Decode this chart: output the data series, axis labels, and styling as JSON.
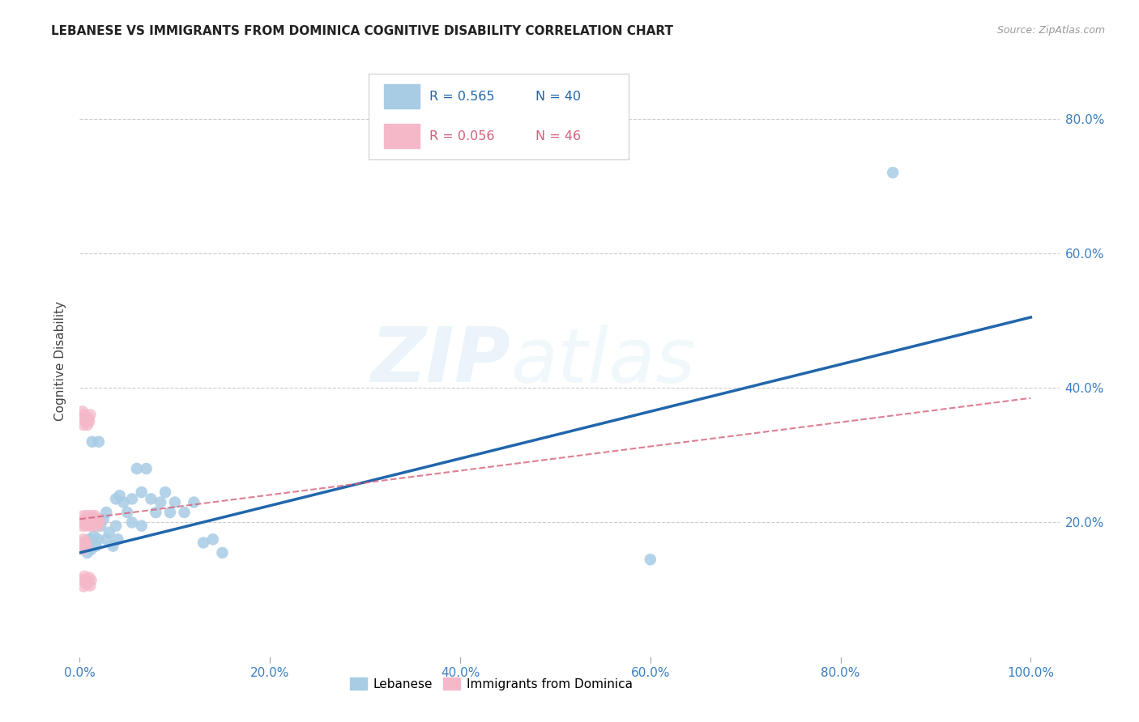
{
  "title": "LEBANESE VS IMMIGRANTS FROM DOMINICA COGNITIVE DISABILITY CORRELATION CHART",
  "source": "Source: ZipAtlas.com",
  "ylabel": "Cognitive Disability",
  "legend_label1": "Lebanese",
  "legend_label2": "Immigrants from Dominica",
  "R1": 0.565,
  "N1": 40,
  "R2": 0.056,
  "N2": 46,
  "color_blue": "#a8cce4",
  "color_pink": "#f4b8c8",
  "line_color_blue": "#2166ac",
  "line_color_pink": "#d4607a",
  "blue_line_x0": 0.0,
  "blue_line_y0": 0.155,
  "blue_line_x1": 1.0,
  "blue_line_y1": 0.505,
  "pink_line_x0": 0.0,
  "pink_line_y0": 0.205,
  "pink_line_x1": 1.0,
  "pink_line_y1": 0.385,
  "xlim": [
    0.0,
    1.03
  ],
  "ylim": [
    0.0,
    0.88
  ],
  "xtick_vals": [
    0.0,
    0.2,
    0.4,
    0.6,
    0.8,
    1.0
  ],
  "xtick_labels": [
    "0.0%",
    "20.0%",
    "40.0%",
    "60.0%",
    "80.0%",
    "100.0%"
  ],
  "ytick_vals": [
    0.2,
    0.4,
    0.6,
    0.8
  ],
  "ytick_labels": [
    "20.0%",
    "40.0%",
    "60.0%",
    "80.0%"
  ],
  "blue_x": [
    0.005,
    0.008,
    0.01,
    0.012,
    0.015,
    0.017,
    0.019,
    0.022,
    0.025,
    0.028,
    0.031,
    0.035,
    0.038,
    0.042,
    0.046,
    0.05,
    0.055,
    0.06,
    0.065,
    0.07,
    0.075,
    0.08,
    0.085,
    0.09,
    0.095,
    0.1,
    0.11,
    0.12,
    0.13,
    0.14,
    0.15,
    0.028,
    0.04,
    0.055,
    0.6,
    0.855,
    0.013,
    0.02,
    0.038,
    0.065
  ],
  "blue_y": [
    0.165,
    0.155,
    0.175,
    0.16,
    0.18,
    0.165,
    0.175,
    0.195,
    0.205,
    0.175,
    0.185,
    0.165,
    0.195,
    0.24,
    0.23,
    0.215,
    0.235,
    0.28,
    0.245,
    0.28,
    0.235,
    0.215,
    0.23,
    0.245,
    0.215,
    0.23,
    0.215,
    0.23,
    0.17,
    0.175,
    0.155,
    0.215,
    0.175,
    0.2,
    0.145,
    0.72,
    0.32,
    0.32,
    0.235,
    0.195
  ],
  "pink_x": [
    0.002,
    0.003,
    0.004,
    0.005,
    0.006,
    0.007,
    0.008,
    0.009,
    0.01,
    0.011,
    0.012,
    0.013,
    0.014,
    0.015,
    0.016,
    0.017,
    0.018,
    0.019,
    0.02,
    0.021,
    0.002,
    0.003,
    0.004,
    0.005,
    0.006,
    0.007,
    0.008,
    0.009,
    0.01,
    0.011,
    0.003,
    0.004,
    0.005,
    0.006,
    0.007,
    0.008,
    0.009,
    0.01,
    0.011,
    0.012,
    0.002,
    0.003,
    0.004,
    0.005,
    0.006,
    0.007
  ],
  "pink_y": [
    0.2,
    0.195,
    0.21,
    0.205,
    0.2,
    0.195,
    0.21,
    0.205,
    0.2,
    0.195,
    0.21,
    0.195,
    0.205,
    0.2,
    0.21,
    0.205,
    0.2,
    0.195,
    0.205,
    0.2,
    0.355,
    0.365,
    0.345,
    0.36,
    0.35,
    0.355,
    0.345,
    0.355,
    0.35,
    0.36,
    0.115,
    0.105,
    0.12,
    0.11,
    0.115,
    0.108,
    0.112,
    0.118,
    0.106,
    0.114,
    0.17,
    0.16,
    0.175,
    0.168,
    0.172,
    0.165
  ]
}
